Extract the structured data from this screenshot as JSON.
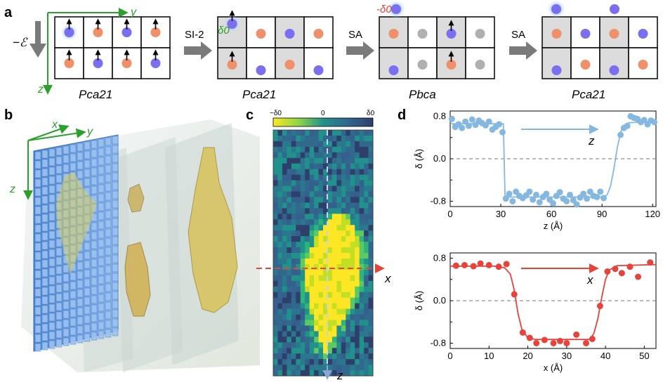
{
  "panel_labels": {
    "a": "a",
    "b": "b",
    "c": "c",
    "d": "d"
  },
  "panel_a": {
    "field_label": "−ℰ",
    "axis_y": "y",
    "axis_z": "z",
    "delta_label_green": "δ0",
    "delta_label_green_sign": "",
    "delta_label_red": "-δ0",
    "steps": [
      "SI-2",
      "SA",
      "SA"
    ],
    "structures": [
      "Pca21",
      "Pca21",
      "Pbca",
      "Pca21"
    ],
    "colors": {
      "blue": "#7b6ff0",
      "orange": "#f0906a",
      "gray": "#b0b0b0",
      "cell_gray": "#dcdcdc",
      "green": "#2ca02c"
    }
  },
  "panel_b": {
    "axis_x": "x",
    "axis_y": "y",
    "axis_z": "z"
  },
  "panel_c": {
    "colorbar_ticks": [
      "−δ0",
      "0",
      "δ0"
    ],
    "axis_x": "x",
    "axis_z": "z",
    "colormap": [
      "#fde725",
      "#5ec962",
      "#21918c",
      "#3b528b",
      "#2d3f6a"
    ]
  },
  "panel_d": {
    "chart_data": [
      {
        "type": "scatter",
        "title": "",
        "xlabel": "z (Å)",
        "ylabel": "δ (Å)",
        "xlim": [
          0,
          122
        ],
        "ylim": [
          -0.9,
          0.9
        ],
        "xticks": [
          0,
          30,
          60,
          90,
          120
        ],
        "yticks": [
          -0.8,
          0.0,
          0.8
        ],
        "arrow_label": "z",
        "color": "#85b8e0",
        "points": [
          [
            1,
            0.75
          ],
          [
            3,
            0.6
          ],
          [
            5,
            0.65
          ],
          [
            7,
            0.58
          ],
          [
            9,
            0.7
          ],
          [
            11,
            0.62
          ],
          [
            13,
            0.74
          ],
          [
            15,
            0.64
          ],
          [
            17,
            0.72
          ],
          [
            19,
            0.67
          ],
          [
            21,
            0.63
          ],
          [
            23,
            0.7
          ],
          [
            25,
            0.55
          ],
          [
            27,
            0.6
          ],
          [
            29,
            0.65
          ],
          [
            31,
            0.5
          ],
          [
            33,
            -0.75
          ],
          [
            35,
            -0.66
          ],
          [
            37,
            -0.8
          ],
          [
            39,
            -0.62
          ],
          [
            41,
            -0.7
          ],
          [
            43,
            -0.74
          ],
          [
            45,
            -0.69
          ],
          [
            47,
            -0.62
          ],
          [
            49,
            -0.77
          ],
          [
            51,
            -0.68
          ],
          [
            53,
            -0.82
          ],
          [
            55,
            -0.72
          ],
          [
            57,
            -0.66
          ],
          [
            59,
            -0.77
          ],
          [
            61,
            -0.84
          ],
          [
            63,
            -0.7
          ],
          [
            65,
            -0.63
          ],
          [
            67,
            -0.75
          ],
          [
            69,
            -0.8
          ],
          [
            71,
            -0.68
          ],
          [
            73,
            -0.78
          ],
          [
            75,
            -0.86
          ],
          [
            77,
            -0.73
          ],
          [
            79,
            -0.66
          ],
          [
            81,
            -0.75
          ],
          [
            83,
            -0.62
          ],
          [
            85,
            -0.7
          ],
          [
            87,
            -0.72
          ],
          [
            89,
            -0.62
          ],
          [
            91,
            -0.74
          ],
          [
            101,
            0.45
          ],
          [
            103,
            0.58
          ],
          [
            105,
            0.62
          ],
          [
            107,
            0.8
          ],
          [
            109,
            0.77
          ],
          [
            111,
            0.75
          ],
          [
            113,
            0.69
          ],
          [
            115,
            0.73
          ],
          [
            117,
            0.65
          ],
          [
            119,
            0.72
          ],
          [
            121,
            0.69
          ]
        ],
        "fit": [
          [
            0,
            0.66
          ],
          [
            31.5,
            0.66
          ],
          [
            32.5,
            -0.72
          ],
          [
            91,
            -0.72
          ],
          [
            93,
            -0.68
          ],
          [
            95,
            -0.52
          ],
          [
            97,
            -0.2
          ],
          [
            99,
            0.2
          ],
          [
            101,
            0.5
          ],
          [
            103,
            0.63
          ],
          [
            106,
            0.68
          ],
          [
            122,
            0.7
          ]
        ]
      },
      {
        "type": "scatter",
        "title": "",
        "xlabel": "x (Å)",
        "ylabel": "δ (Å)",
        "xlim": [
          0,
          53
        ],
        "ylim": [
          -0.9,
          0.9
        ],
        "xticks": [
          0,
          10,
          20,
          30,
          40,
          50
        ],
        "yticks": [
          -0.8,
          0.0,
          0.8
        ],
        "arrow_label": "x",
        "color": "#e8433a",
        "points": [
          [
            1.5,
            0.66
          ],
          [
            3.7,
            0.67
          ],
          [
            6,
            0.65
          ],
          [
            7.8,
            0.7
          ],
          [
            10,
            0.67
          ],
          [
            12.5,
            0.64
          ],
          [
            14.5,
            0.69
          ],
          [
            16.5,
            0.12
          ],
          [
            18.7,
            -0.6
          ],
          [
            20.5,
            -0.7
          ],
          [
            22.2,
            -0.8
          ],
          [
            24.3,
            -0.74
          ],
          [
            26.6,
            -0.8
          ],
          [
            28.3,
            -0.76
          ],
          [
            30,
            -0.8
          ],
          [
            32.5,
            -0.64
          ],
          [
            35,
            -0.8
          ],
          [
            36.6,
            -0.72
          ],
          [
            38.6,
            -0.1
          ],
          [
            40.5,
            0.55
          ],
          [
            42.5,
            0.6
          ],
          [
            44.2,
            0.52
          ],
          [
            46.3,
            0.64
          ],
          [
            48.4,
            0.45
          ],
          [
            51.5,
            0.72
          ]
        ],
        "fit": [
          [
            0,
            0.65
          ],
          [
            12,
            0.65
          ],
          [
            14,
            0.62
          ],
          [
            15.5,
            0.5
          ],
          [
            16.5,
            0.2
          ],
          [
            17.5,
            -0.25
          ],
          [
            18.5,
            -0.55
          ],
          [
            20,
            -0.7
          ],
          [
            22,
            -0.73
          ],
          [
            36,
            -0.73
          ],
          [
            37,
            -0.62
          ],
          [
            38,
            -0.35
          ],
          [
            39,
            0.05
          ],
          [
            40,
            0.4
          ],
          [
            41,
            0.58
          ],
          [
            43,
            0.66
          ],
          [
            53,
            0.68
          ]
        ]
      }
    ]
  }
}
